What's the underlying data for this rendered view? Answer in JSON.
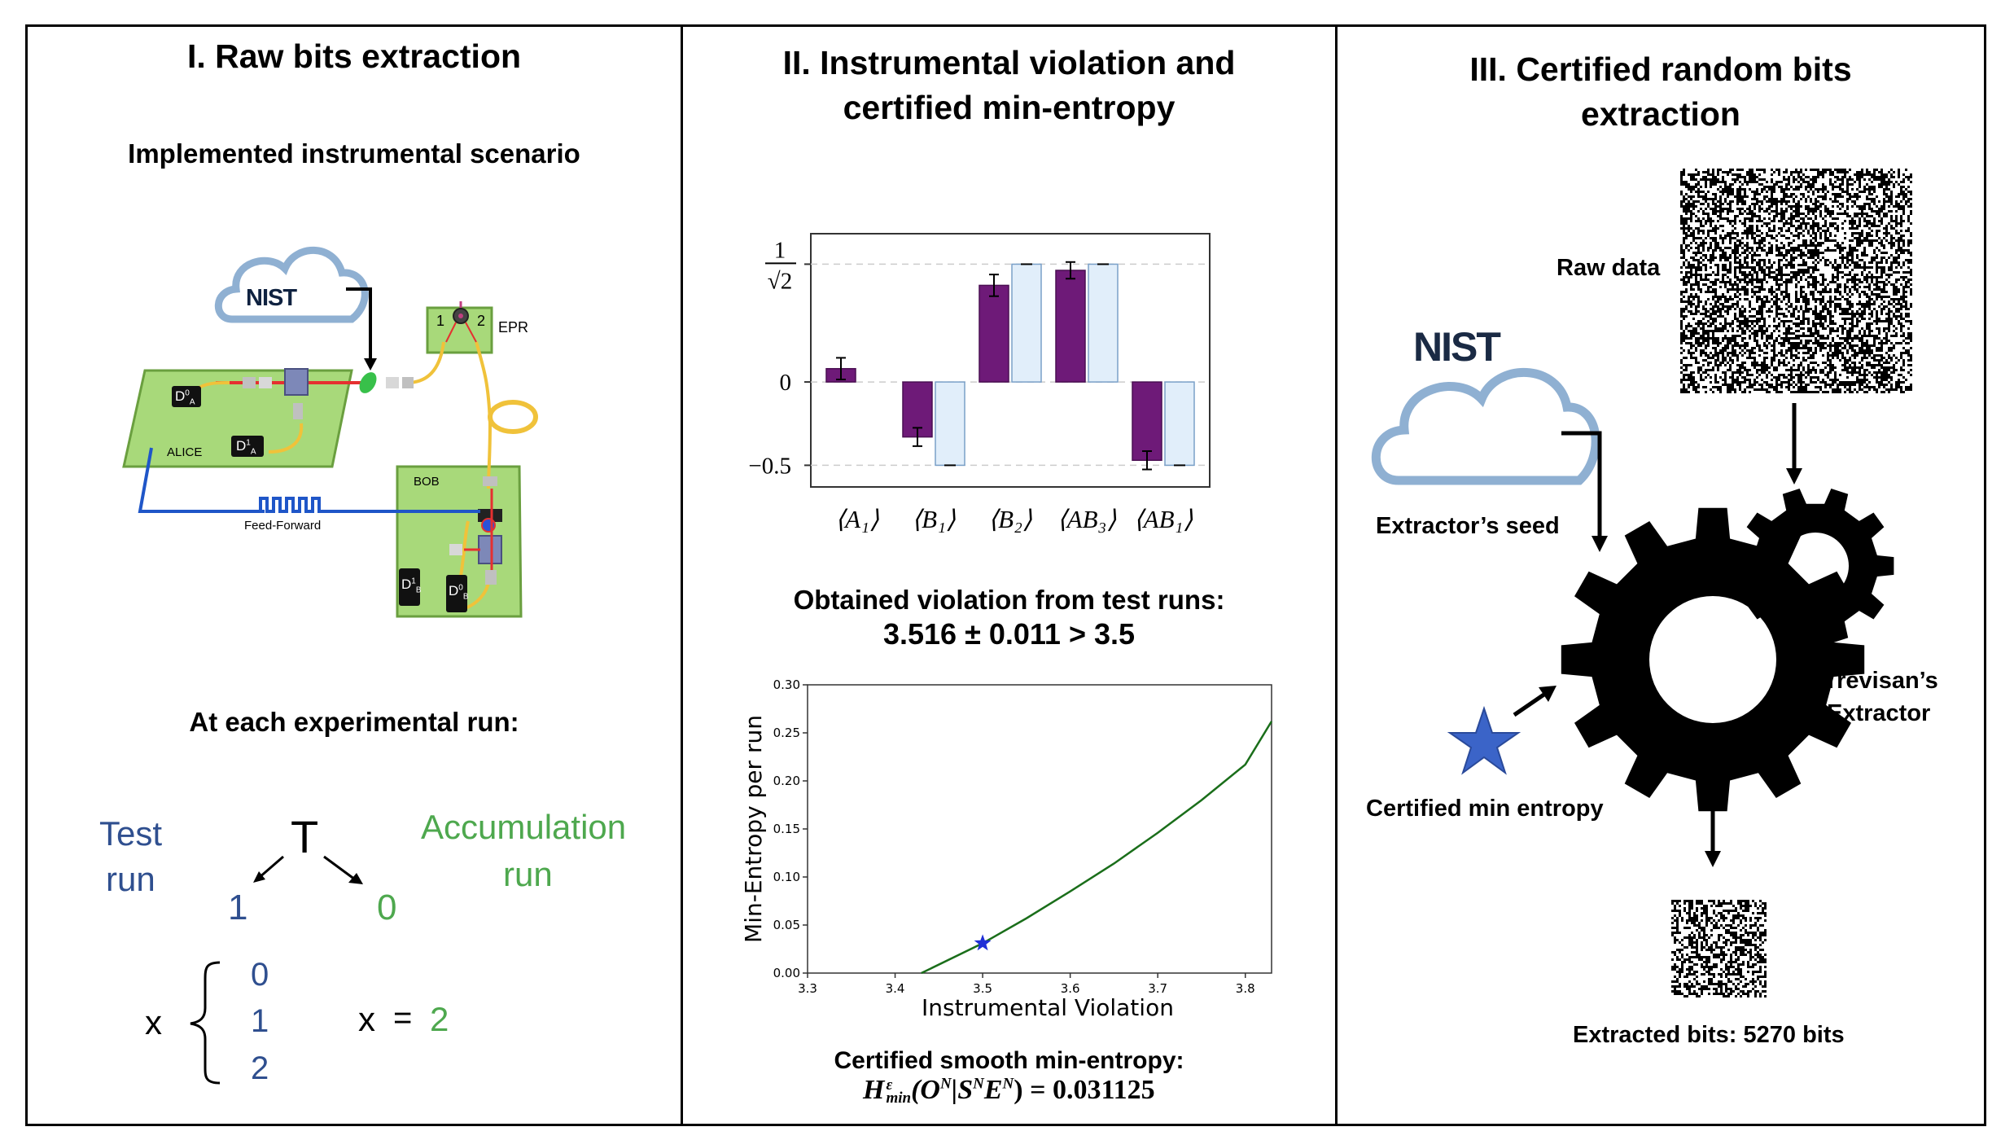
{
  "panel1": {
    "title": "I. Raw bits extraction",
    "subtitle": "Implemented instrumental scenario",
    "setup": {
      "nist_logo": "NIST",
      "alice_label": "ALICE",
      "bob_label": "BOB",
      "epr_label": "EPR",
      "epr_port_1": "1",
      "epr_port_2": "2",
      "feed_forward_label": "Feed-Forward",
      "detector_a0": "D",
      "detector_a0_sup": "0",
      "detector_a0_sub": "A",
      "detector_a1": "D",
      "detector_a1_sup": "1",
      "detector_a1_sub": "A",
      "detector_b1": "D",
      "detector_b1_sup": "1",
      "detector_b1_sub": "B",
      "detector_b0": "D",
      "detector_b0_sup": "0",
      "detector_b0_sub": "B"
    },
    "run_heading": "At each experimental run:",
    "tree": {
      "root": "T",
      "test_label_line1": "Test",
      "test_label_line2": "run",
      "accum_label_line1": "Accumulation",
      "accum_label_line2": "run",
      "left_value": "1",
      "right_value": "0",
      "x_label": "x",
      "x_values": [
        "0",
        "1",
        "2"
      ],
      "x_eq_label": "x",
      "x_eq_sign": "=",
      "x_eq_value": "2"
    },
    "colors": {
      "test": "#2f4f8f",
      "accumulation": "#4ea84e"
    }
  },
  "panel2": {
    "title_line1": "II. Instrumental violation and",
    "title_line2": "certified min-entropy",
    "violation_heading": "Obtained violation from test runs:",
    "violation_value": "3.516 ± 0.011 > 3.5",
    "smooth_heading": "Certified smooth min-entropy:",
    "smooth_formula_lhs": "H",
    "smooth_formula_sup": "ε",
    "smooth_formula_sub": "min",
    "smooth_formula_rest": "(O",
    "smooth_formula_n1": "N",
    "smooth_formula_mid": "|S",
    "smooth_formula_n2": "N",
    "smooth_formula_e": "E",
    "smooth_formula_n3": "N",
    "smooth_formula_end": ") = 0.031125"
  },
  "chart_data": [
    {
      "type": "bar",
      "title": "",
      "categories": [
        "⟨A₁⟩",
        "⟨B₁⟩",
        "⟨B₂⟩",
        "⟨AB₃⟩",
        "⟨AB₁⟩"
      ],
      "series": [
        {
          "values": [
            0.08,
            -0.33,
            0.58,
            0.67,
            -0.47
          ],
          "errors": [
            0.065,
            0.055,
            0.065,
            0.05,
            0.055
          ],
          "color": "#6e1a78"
        },
        {
          "values": [
            null,
            -0.5,
            0.707,
            0.707,
            -0.5
          ],
          "errors": [
            null,
            0,
            0,
            0,
            0
          ],
          "color": "#e1eefa"
        }
      ],
      "yticks": [
        {
          "value": 0.7071,
          "label_num": "1",
          "label_den": "√2"
        },
        {
          "value": 0,
          "label": "0"
        },
        {
          "value": -0.5,
          "label": "−0.5"
        }
      ],
      "ylim": [
        -0.63,
        0.89
      ],
      "grid": "dashed at ticks"
    },
    {
      "type": "line",
      "title": "",
      "xlabel": "Instrumental Violation",
      "ylabel": "Min-Entropy per run",
      "xlim": [
        3.3,
        3.83
      ],
      "ylim": [
        0.0,
        0.3
      ],
      "xticks": [
        "3.3",
        "3.4",
        "3.5",
        "3.6",
        "3.7",
        "3.8"
      ],
      "yticks": [
        "0.00",
        "0.05",
        "0.10",
        "0.15",
        "0.20",
        "0.25",
        "0.30"
      ],
      "series": [
        {
          "x": [
            3.43,
            3.5,
            3.55,
            3.6,
            3.65,
            3.7,
            3.75,
            3.8,
            3.83
          ],
          "y": [
            0.0,
            0.031,
            0.057,
            0.085,
            0.114,
            0.146,
            0.18,
            0.217,
            0.262
          ],
          "color": "#1a6e1a"
        }
      ],
      "marker": {
        "x": 3.5,
        "y": 0.031,
        "shape": "star",
        "color": "#1f2fd6"
      }
    }
  ],
  "panel3": {
    "title_line1": "III. Certified random bits",
    "title_line2": "extraction",
    "raw_data_label": "Raw data",
    "nist_logo": "NIST",
    "seed_label": "Extractor’s seed",
    "extractor_line1": "Trevisan’s",
    "extractor_line2": "Extractor",
    "min_entropy_label": "Certified min entropy",
    "extracted_label": "Extracted bits: 5270 bits"
  }
}
